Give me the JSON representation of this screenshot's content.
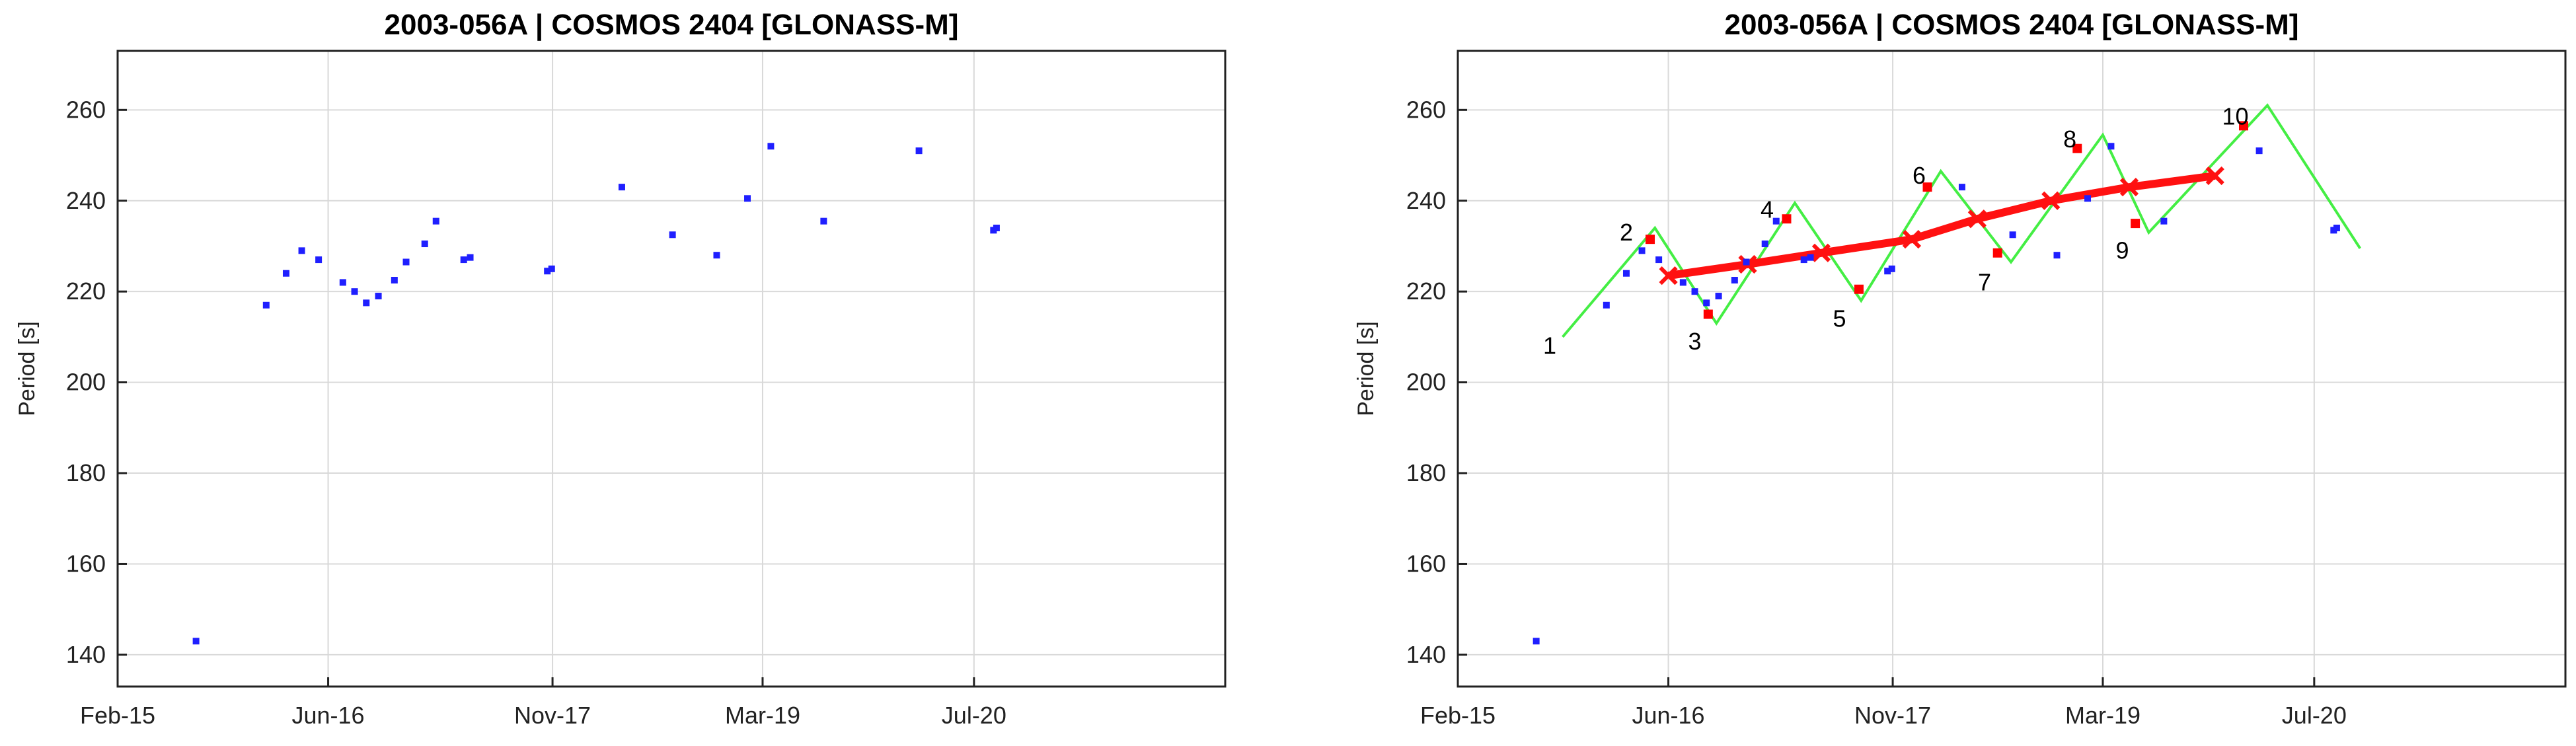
{
  "chart_data": [
    {
      "type": "scatter",
      "title": "2003-056A | COSMOS 2404 [GLONASS-M]",
      "xlabel": "",
      "ylabel": "Period [s]",
      "xticks": [
        "2015-02-01",
        "2016-06-01",
        "2017-11-01",
        "2019-03-01",
        "2020-07-01"
      ],
      "xticklabels": [
        "Feb-15",
        "Jun-16",
        "Nov-17",
        "Mar-19",
        "Jul-20"
      ],
      "xlim": [
        "2015-02-01",
        "2022-02-01"
      ],
      "yticks": [
        140,
        160,
        180,
        200,
        220,
        240,
        260
      ],
      "ylim": [
        133,
        273
      ],
      "grid": true,
      "colors": {
        "points": "#1f1fff"
      },
      "series": [
        {
          "points": [
            [
              "2015-08-01",
              143
            ],
            [
              "2016-01-10",
              217
            ],
            [
              "2016-02-25",
              224
            ],
            [
              "2016-04-01",
              229
            ],
            [
              "2016-05-10",
              227
            ],
            [
              "2016-07-05",
              222
            ],
            [
              "2016-08-01",
              220
            ],
            [
              "2016-08-28",
              217.5
            ],
            [
              "2016-09-25",
              219
            ],
            [
              "2016-11-01",
              222.5
            ],
            [
              "2016-11-28",
              226.5
            ],
            [
              "2017-01-10",
              230.5
            ],
            [
              "2017-02-05",
              235.5
            ],
            [
              "2017-04-10",
              227
            ],
            [
              "2017-04-25",
              227.5
            ],
            [
              "2017-10-20",
              224.5
            ],
            [
              "2017-10-30",
              225
            ],
            [
              "2018-04-10",
              243
            ],
            [
              "2018-08-05",
              232.5
            ],
            [
              "2018-11-15",
              228
            ],
            [
              "2019-01-25",
              240.5
            ],
            [
              "2019-03-20",
              252
            ],
            [
              "2019-07-20",
              235.5
            ],
            [
              "2020-02-25",
              251
            ],
            [
              "2020-08-15",
              233.5
            ],
            [
              "2020-08-22",
              234
            ]
          ]
        }
      ]
    },
    {
      "type": "scatter",
      "title": "2003-056A | COSMOS 2404 [GLONASS-M]",
      "xlabel": "",
      "ylabel": "Period [s]",
      "xticks": [
        "2015-02-01",
        "2016-06-01",
        "2017-11-01",
        "2019-03-01",
        "2020-07-01"
      ],
      "xticklabels": [
        "Feb-15",
        "Jun-16",
        "Nov-17",
        "Mar-19",
        "Jul-20"
      ],
      "xlim": [
        "2015-02-01",
        "2022-02-01"
      ],
      "yticks": [
        140,
        160,
        180,
        200,
        220,
        240,
        260
      ],
      "ylim": [
        133,
        273
      ],
      "grid": true,
      "colors": {
        "points": "#1f1fff",
        "extrema": "#ff0000",
        "zigzag": "#44ee44",
        "trend": "#ff1111"
      },
      "series": [
        {
          "points": [
            [
              "2015-08-01",
              143
            ],
            [
              "2016-01-10",
              217
            ],
            [
              "2016-02-25",
              224
            ],
            [
              "2016-04-01",
              229
            ],
            [
              "2016-05-10",
              227
            ],
            [
              "2016-07-05",
              222
            ],
            [
              "2016-08-01",
              220
            ],
            [
              "2016-08-28",
              217.5
            ],
            [
              "2016-09-25",
              219
            ],
            [
              "2016-11-01",
              222.5
            ],
            [
              "2016-11-28",
              226.5
            ],
            [
              "2017-01-10",
              230.5
            ],
            [
              "2017-02-05",
              235.5
            ],
            [
              "2017-04-10",
              227
            ],
            [
              "2017-04-25",
              227.5
            ],
            [
              "2017-10-20",
              224.5
            ],
            [
              "2017-10-30",
              225
            ],
            [
              "2018-04-10",
              243
            ],
            [
              "2018-08-05",
              232.5
            ],
            [
              "2018-11-15",
              228
            ],
            [
              "2019-01-25",
              240.5
            ],
            [
              "2019-03-20",
              252
            ],
            [
              "2019-07-20",
              235.5
            ],
            [
              "2020-02-25",
              251
            ],
            [
              "2020-08-15",
              233.5
            ],
            [
              "2020-08-22",
              234
            ]
          ]
        },
        {
          "points": [
            [
              "2016-04-20",
              231.5
            ],
            [
              "2016-09-01",
              215
            ],
            [
              "2017-03-01",
              236
            ],
            [
              "2017-08-15",
              220.5
            ],
            [
              "2018-01-20",
              243
            ],
            [
              "2018-07-01",
              228.5
            ],
            [
              "2019-01-01",
              251.5
            ],
            [
              "2019-05-15",
              235
            ],
            [
              "2020-01-20",
              256.5
            ]
          ]
        },
        {
          "points": [
            [
              "2015-10-01",
              210
            ],
            [
              "2016-05-01",
              234
            ],
            [
              "2016-09-20",
              213
            ],
            [
              "2017-03-20",
              239.5
            ],
            [
              "2017-08-20",
              218
            ],
            [
              "2018-02-20",
              246.5
            ],
            [
              "2018-08-01",
              226.5
            ],
            [
              "2019-03-01",
              254.5
            ],
            [
              "2019-06-15",
              233
            ],
            [
              "2020-03-15",
              261
            ],
            [
              "2020-10-15",
              229.5
            ]
          ]
        },
        {
          "points": [
            [
              "2016-06-01",
              223.5
            ],
            [
              "2016-12-01",
              226
            ],
            [
              "2017-05-20",
              228.5
            ],
            [
              "2017-12-15",
              231.5
            ],
            [
              "2018-05-15",
              236
            ],
            [
              "2018-11-01",
              240
            ],
            [
              "2019-05-01",
              243
            ],
            [
              "2019-11-15",
              245.5
            ]
          ]
        }
      ],
      "annotations": [
        {
          "text": "1",
          "x": "2015-09-01",
          "y": 208
        },
        {
          "text": "2",
          "x": "2016-02-25",
          "y": 233
        },
        {
          "text": "3",
          "x": "2016-08-01",
          "y": 209
        },
        {
          "text": "4",
          "x": "2017-01-15",
          "y": 238
        },
        {
          "text": "5",
          "x": "2017-07-01",
          "y": 214
        },
        {
          "text": "6",
          "x": "2018-01-01",
          "y": 245.5
        },
        {
          "text": "7",
          "x": "2018-06-01",
          "y": 222
        },
        {
          "text": "8",
          "x": "2018-12-15",
          "y": 253.5
        },
        {
          "text": "9",
          "x": "2019-04-15",
          "y": 229
        },
        {
          "text": "10",
          "x": "2020-01-01",
          "y": 258.5
        }
      ]
    }
  ]
}
